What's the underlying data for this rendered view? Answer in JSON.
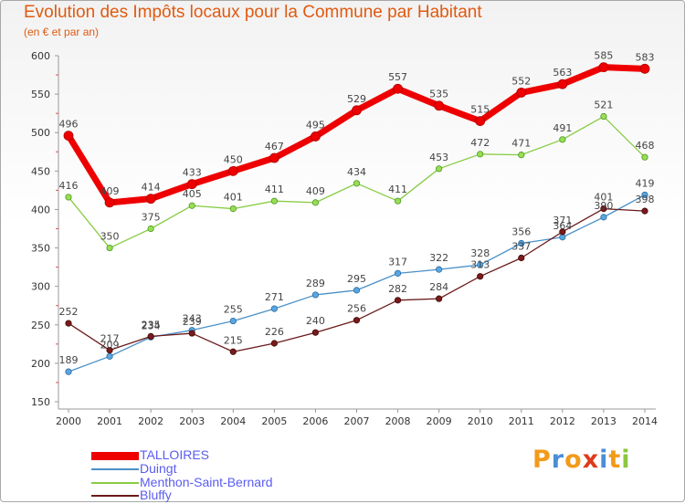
{
  "title": "Evolution des Impôts locaux pour la Commune par Habitant",
  "subtitle": "(en € et par an)",
  "logo_text": "Proxiti",
  "chart_data": {
    "type": "line",
    "title": "Evolution des Impôts locaux pour la Commune par Habitant",
    "subtitle": "(en € et par an)",
    "x": [
      "2000",
      "2001",
      "2002",
      "2003",
      "2004",
      "2005",
      "2006",
      "2007",
      "2008",
      "2009",
      "2010",
      "2011",
      "2012",
      "2013",
      "2014"
    ],
    "ylim": [
      150,
      600
    ],
    "yticks": [
      150,
      200,
      250,
      300,
      350,
      400,
      450,
      500,
      550,
      600
    ],
    "grid": false,
    "legend_position": "bottom-left",
    "series": [
      {
        "name": "TALLOIRES",
        "color": "#ee0000",
        "values": [
          496,
          409,
          414,
          433,
          450,
          467,
          495,
          529,
          557,
          535,
          515,
          552,
          563,
          585,
          583
        ]
      },
      {
        "name": "Duingt",
        "color": "#4a90c8",
        "values": [
          189,
          209,
          234,
          243,
          255,
          271,
          289,
          295,
          317,
          322,
          328,
          356,
          364,
          390,
          419
        ]
      },
      {
        "name": "Menthon-Saint-Bernard",
        "color": "#88cc44",
        "values": [
          416,
          350,
          375,
          405,
          401,
          411,
          409,
          434,
          411,
          453,
          472,
          471,
          491,
          521,
          468
        ]
      },
      {
        "name": "Bluffy",
        "color": "#6b1a1a",
        "values": [
          252,
          217,
          235,
          239,
          215,
          226,
          240,
          256,
          282,
          284,
          313,
          337,
          371,
          401,
          398
        ]
      }
    ]
  }
}
